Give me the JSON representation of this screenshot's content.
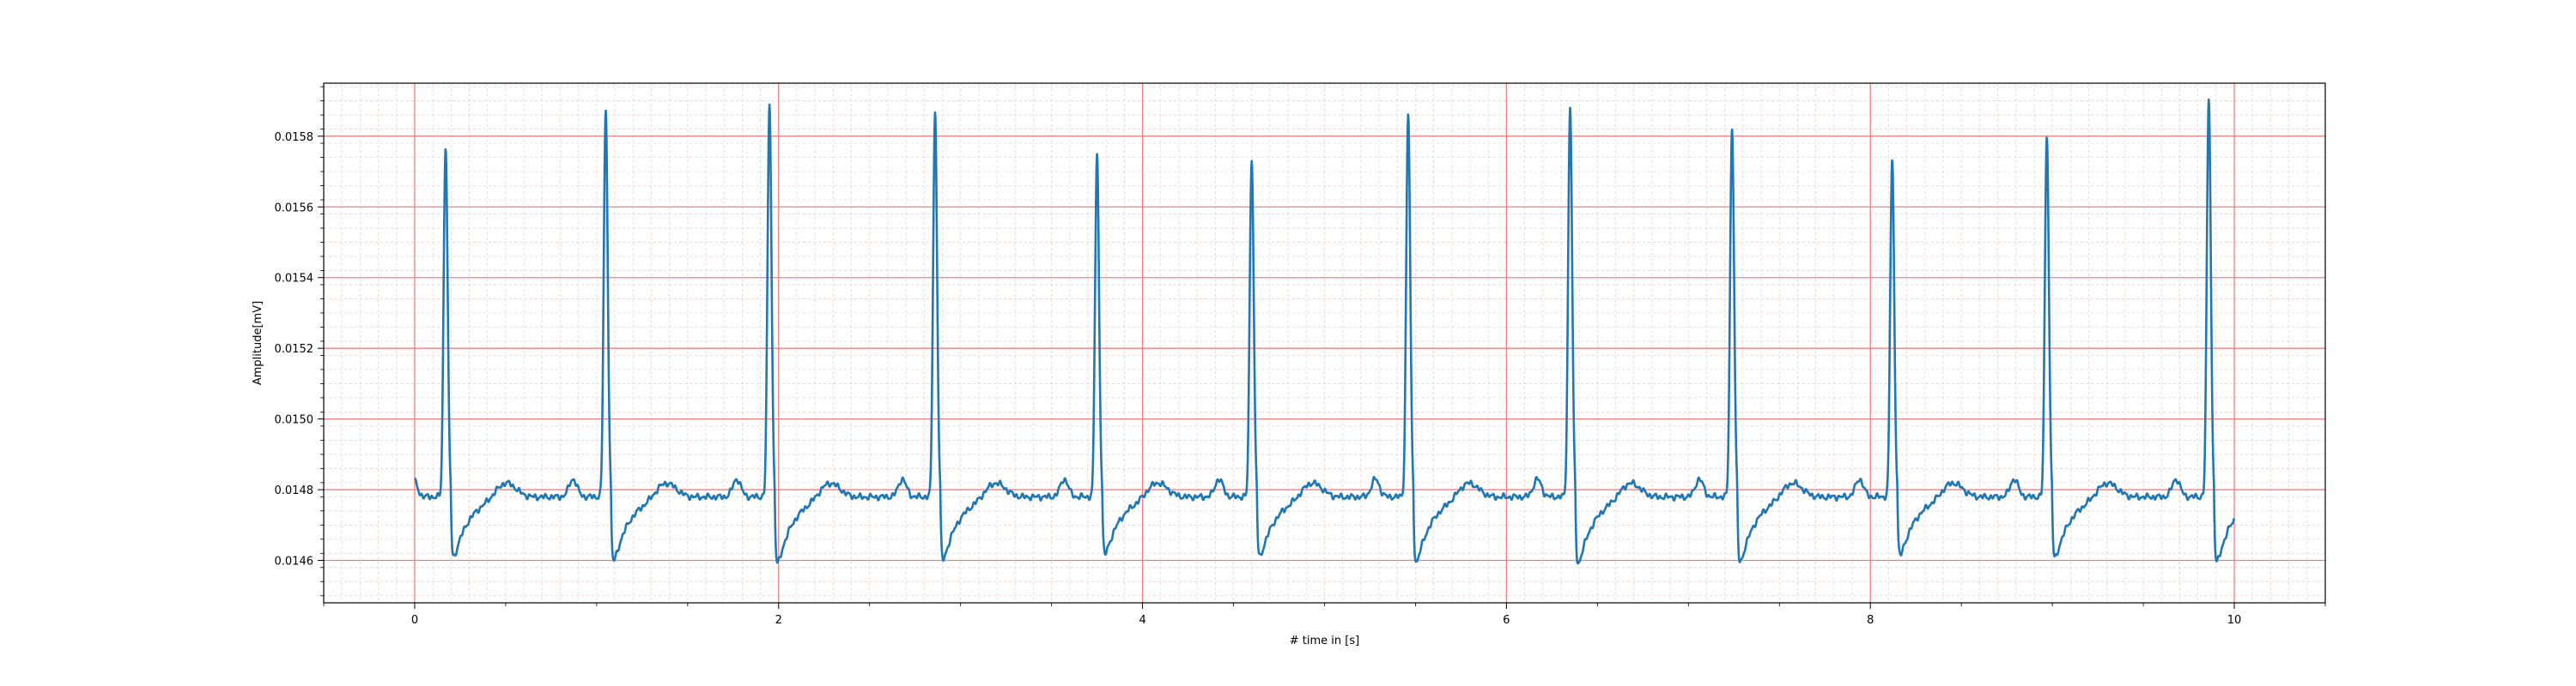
{
  "chart_data": {
    "type": "line",
    "title": "",
    "xlabel": "# time in [s]",
    "ylabel": "Amplitude[mV]",
    "xlim": [
      -0.5,
      10.5
    ],
    "ylim": [
      0.01448,
      0.01595
    ],
    "x_ticks": [
      0,
      2,
      4,
      6,
      8,
      10
    ],
    "x_tick_labels": [
      "0",
      "2",
      "4",
      "6",
      "8",
      "10"
    ],
    "y_ticks": [
      0.0146,
      0.0148,
      0.015,
      0.0152,
      0.0154,
      0.0156,
      0.0158
    ],
    "y_tick_labels": [
      "0.0146",
      "0.0148",
      "0.0150",
      "0.0152",
      "0.0154",
      "0.0156",
      "0.0158"
    ],
    "grid": true,
    "major_grid_color": "#f08080",
    "minor_grid_color": "#f4c6c6",
    "line_color": "#1f77b4",
    "baseline": 0.01478,
    "beats": [
      {
        "t": 0.17,
        "peak": 0.015775,
        "trough": 0.01456
      },
      {
        "t": 1.05,
        "peak": 0.01587,
        "trough": 0.014545
      },
      {
        "t": 1.95,
        "peak": 0.01589,
        "trough": 0.014535
      },
      {
        "t": 2.86,
        "peak": 0.015865,
        "trough": 0.01455
      },
      {
        "t": 3.75,
        "peak": 0.015745,
        "trough": 0.01457
      },
      {
        "t": 4.6,
        "peak": 0.01574,
        "trough": 0.01456
      },
      {
        "t": 5.46,
        "peak": 0.015865,
        "trough": 0.01454
      },
      {
        "t": 6.35,
        "peak": 0.015885,
        "trough": 0.014535
      },
      {
        "t": 7.24,
        "peak": 0.015825,
        "trough": 0.01454
      },
      {
        "t": 8.12,
        "peak": 0.015735,
        "trough": 0.014565
      },
      {
        "t": 8.97,
        "peak": 0.015805,
        "trough": 0.014555
      },
      {
        "t": 9.86,
        "peak": 0.015905,
        "trough": 0.01454
      }
    ],
    "series": [
      {
        "start_x": 0.0,
        "end_x": 10.0
      }
    ]
  }
}
